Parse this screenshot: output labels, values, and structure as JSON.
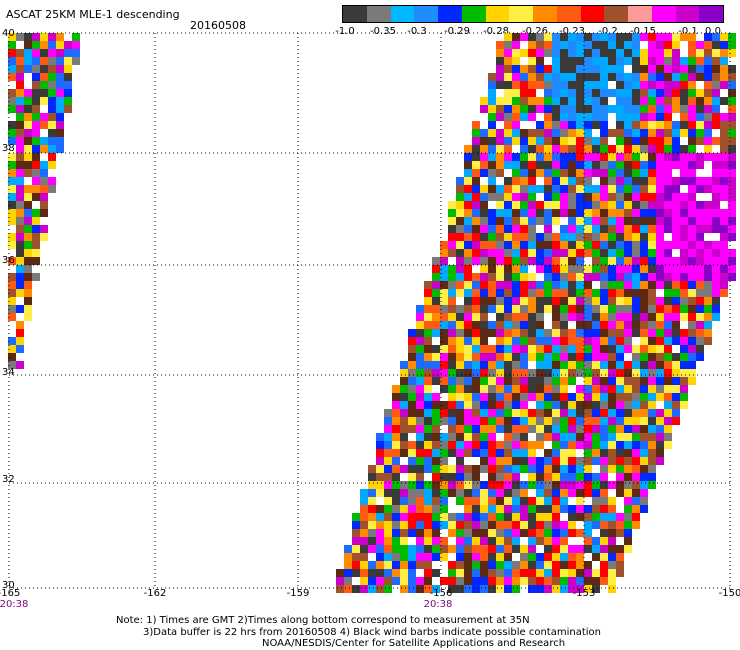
{
  "header": {
    "title": "ASCAT 25KM MLE-1 descending",
    "date": "20160508"
  },
  "colorbar": {
    "colors": [
      "#3a3a3a",
      "#7a7a7a",
      "#00b8ff",
      "#1e8cff",
      "#0028ff",
      "#00bb00",
      "#ffd400",
      "#ffee44",
      "#ff8c00",
      "#ff5a14",
      "#ff0000",
      "#a0522d",
      "#ff9a9a",
      "#ff00ff",
      "#cc00cc",
      "#8a00c8"
    ],
    "labels": [
      "-1.0",
      "-0.35",
      "-0.3",
      "-0.29",
      "-0.28",
      "-0.26",
      "-0.23",
      "-0.2",
      "-0.15",
      "-0.1",
      "0.0"
    ]
  },
  "axes": {
    "x_ticks": [
      "-165",
      "-162",
      "-159",
      "-156",
      "-153",
      "-150"
    ],
    "y_ticks": [
      "40",
      "38",
      "36",
      "34",
      "32",
      "30"
    ],
    "times": [
      "20:38",
      "20:38"
    ]
  },
  "notes": {
    "line1": "Note: 1) Times are GMT 2)Times along bottom correspond to measurement at 35N",
    "line2": "3)Data buffer is 22 hrs from 20160508 4) Black wind barbs indicate possible contamination",
    "line3": "NOAA/NESDIS/Center for Satellite Applications and Research"
  },
  "swath_palette": [
    "#1e6bff",
    "#0028ff",
    "#00a8ff",
    "#00bb00",
    "#ffd400",
    "#ffee44",
    "#ff8c00",
    "#ff5a14",
    "#ff0000",
    "#a0522d",
    "#ff00ff",
    "#cc00cc",
    "#7a7a7a",
    "#3a3a3a",
    "#5c2a12"
  ]
}
